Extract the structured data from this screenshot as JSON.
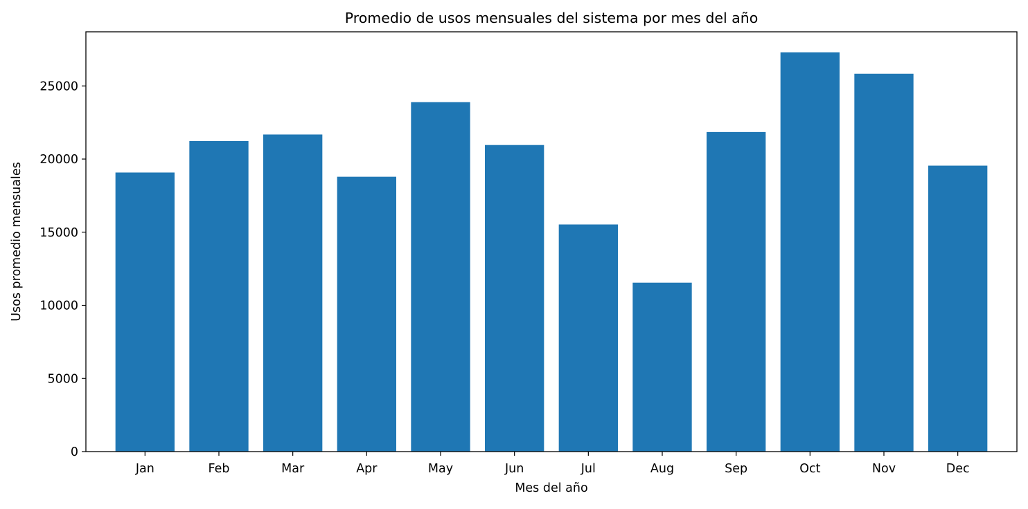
{
  "chart_data": {
    "type": "bar",
    "title": "Promedio de usos mensuales del sistema por mes del año",
    "xlabel": "Mes del año",
    "ylabel": "Usos promedio mensuales",
    "categories": [
      "Jan",
      "Feb",
      "Mar",
      "Apr",
      "May",
      "Jun",
      "Jul",
      "Aug",
      "Sep",
      "Oct",
      "Nov",
      "Dec"
    ],
    "values": [
      19080,
      21230,
      21680,
      18790,
      23890,
      20960,
      15530,
      11550,
      21850,
      27300,
      25830,
      19550
    ],
    "ylim": [
      0,
      28700
    ],
    "yticks": [
      0,
      5000,
      10000,
      15000,
      20000,
      25000
    ],
    "ytick_labels": [
      "0",
      "5000",
      "10000",
      "15000",
      "20000",
      "25000"
    ],
    "bar_color": "#1f77b4",
    "grid": false,
    "legend": false
  }
}
